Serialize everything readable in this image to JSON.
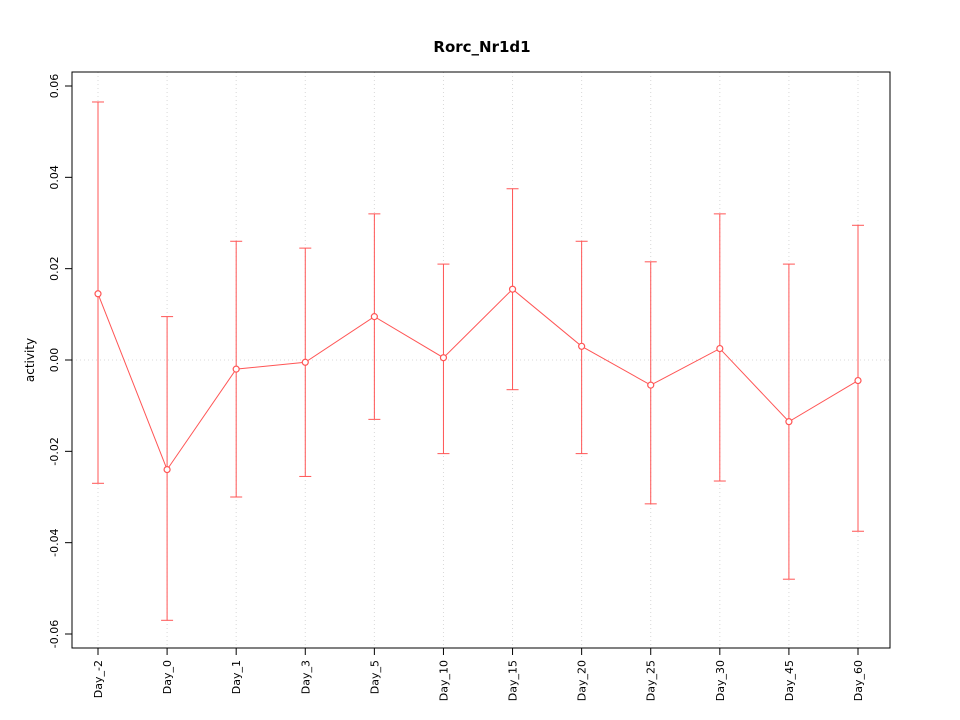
{
  "chart_data": {
    "type": "line",
    "title": "Rorc_Nr1d1",
    "xlabel": "",
    "ylabel": "activity",
    "categories": [
      "Day_-2",
      "Day_0",
      "Day_1",
      "Day_3",
      "Day_5",
      "Day_10",
      "Day_15",
      "Day_20",
      "Day_25",
      "Day_30",
      "Day_45",
      "Day_60"
    ],
    "series": [
      {
        "name": "activity",
        "values": [
          0.0145,
          -0.024,
          -0.002,
          -0.0005,
          0.0095,
          0.0005,
          0.0155,
          0.003,
          -0.0055,
          0.0025,
          -0.0135,
          -0.0045
        ],
        "upper": [
          0.0565,
          0.0095,
          0.026,
          0.0245,
          0.032,
          0.021,
          0.0375,
          0.026,
          0.0215,
          0.032,
          0.021,
          0.0295
        ],
        "lower": [
          -0.027,
          -0.057,
          -0.03,
          -0.0255,
          -0.013,
          -0.0205,
          -0.0065,
          -0.0205,
          -0.0315,
          -0.0265,
          -0.048,
          -0.0375
        ]
      }
    ],
    "ylim": [
      -0.06,
      0.06
    ],
    "ytick_values": [
      -0.06,
      -0.04,
      -0.02,
      0,
      0.02,
      0.04,
      0.06
    ],
    "ytick_labels": [
      "-0.06",
      "-0.04",
      "-0.02",
      "0.00",
      "0.02",
      "0.04",
      "0.06"
    ],
    "grid": "dotted vertical line at each category; dotted horizontal line at y=0",
    "legend_position": "none",
    "marker": "open-circle",
    "line_color": "#ff5555",
    "grid_color": "#d8d8d8",
    "axis_color": "#000000"
  }
}
